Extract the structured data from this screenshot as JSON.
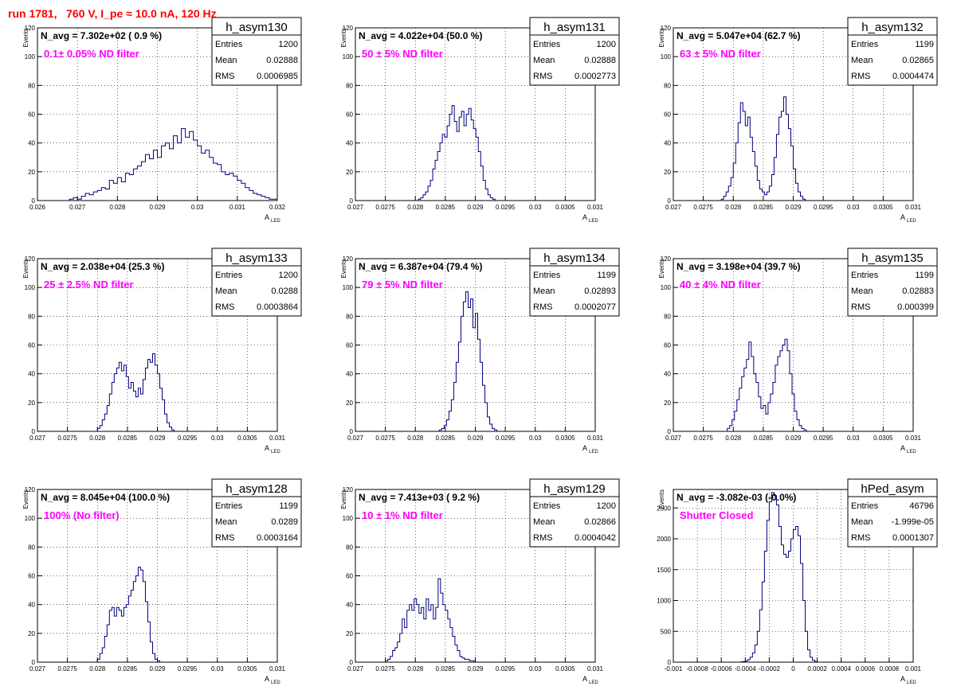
{
  "run_title": "run 1781,   760 V, I_pe ≈ 10.0 nA, 120 Hz",
  "colors": {
    "hist_line": "#000080",
    "filter_text": "#ff00ff",
    "run_title": "#ff0000",
    "axis": "#000000"
  },
  "stats_labels": {
    "entries": "Entries",
    "mean": "Mean",
    "rms": "RMS"
  },
  "ylabel": "Events",
  "xlabel_main": "A",
  "xlabel_sub": "LED",
  "chart_data": [
    {
      "type": "bar",
      "name": "h_asym130",
      "title": "h_asym130",
      "navg": "N_avg = 7.302e+02 ( 0.9 %)",
      "filter": "0.1± 0.05% ND filter",
      "entries": "1200",
      "mean": "0.02888",
      "rms": "0.0006985",
      "xlim": [
        0.026,
        0.032
      ],
      "ylim": [
        0,
        120
      ],
      "xticks": [
        0.026,
        0.027,
        0.028,
        0.029,
        0.03,
        0.031,
        0.032
      ],
      "xtick_labels": [
        "0.026",
        "0.027",
        "0.028",
        "0.029",
        "0.03",
        "0.031",
        "0.032"
      ],
      "yticks": [
        0,
        20,
        40,
        60,
        80,
        100,
        120
      ],
      "ytick_labels": [
        "0",
        "20",
        "40",
        "60",
        "80",
        "100",
        "120"
      ],
      "bin_start": 0.0268,
      "bin_width": 0.0001,
      "values": [
        1,
        2,
        1,
        3,
        5,
        4,
        6,
        7,
        9,
        8,
        14,
        12,
        16,
        13,
        19,
        18,
        22,
        24,
        27,
        32,
        29,
        35,
        30,
        38,
        40,
        36,
        45,
        40,
        50,
        44,
        48,
        42,
        38,
        33,
        35,
        30,
        26,
        25,
        20,
        18,
        19,
        17,
        14,
        12,
        9,
        7,
        5,
        4,
        3,
        2,
        1,
        1
      ]
    },
    {
      "type": "bar",
      "name": "h_asym131",
      "title": "h_asym131",
      "navg": "N_avg = 4.022e+04 (50.0 %)",
      "filter": "50 ± 5% ND filter",
      "entries": "1200",
      "mean": "0.02888",
      "rms": "0.0002773",
      "xlim": [
        0.027,
        0.031
      ],
      "ylim": [
        0,
        120
      ],
      "xticks": [
        0.027,
        0.0275,
        0.028,
        0.0285,
        0.029,
        0.0295,
        0.03,
        0.0305,
        0.031
      ],
      "xtick_labels": [
        "0.027",
        "0.0275",
        "0.028",
        "0.0285",
        "0.029",
        "0.0295",
        "0.03",
        "0.0305",
        "0.031"
      ],
      "yticks": [
        0,
        20,
        40,
        60,
        80,
        100,
        120
      ],
      "ytick_labels": [
        "0",
        "20",
        "40",
        "60",
        "80",
        "100",
        "120"
      ],
      "bin_start": 0.02805,
      "bin_width": 4e-05,
      "values": [
        1,
        2,
        4,
        6,
        10,
        14,
        22,
        28,
        34,
        40,
        46,
        44,
        52,
        60,
        66,
        55,
        48,
        58,
        62,
        52,
        60,
        64,
        56,
        50,
        44,
        34,
        24,
        14,
        8,
        4,
        2,
        1
      ]
    },
    {
      "type": "bar",
      "name": "h_asym132",
      "title": "h_asym132",
      "navg": "N_avg = 5.047e+04 (62.7 %)",
      "filter": "63 ± 5% ND filter",
      "entries": "1199",
      "mean": "0.02865",
      "rms": "0.0004474",
      "xlim": [
        0.027,
        0.031
      ],
      "ylim": [
        0,
        120
      ],
      "xticks": [
        0.027,
        0.0275,
        0.028,
        0.0285,
        0.029,
        0.0295,
        0.03,
        0.0305,
        0.031
      ],
      "xtick_labels": [
        "0.027",
        "0.0275",
        "0.028",
        "0.0285",
        "0.029",
        "0.0295",
        "0.03",
        "0.0305",
        "0.031"
      ],
      "yticks": [
        0,
        20,
        40,
        60,
        80,
        100,
        120
      ],
      "ytick_labels": [
        "0",
        "20",
        "40",
        "60",
        "80",
        "100",
        "120"
      ],
      "bin_start": 0.0278,
      "bin_width": 4e-05,
      "values": [
        1,
        3,
        6,
        10,
        16,
        26,
        40,
        54,
        68,
        62,
        52,
        58,
        44,
        34,
        24,
        14,
        8,
        6,
        4,
        6,
        10,
        18,
        30,
        46,
        58,
        62,
        72,
        60,
        50,
        38,
        22,
        12,
        6,
        3,
        1
      ]
    },
    {
      "type": "bar",
      "name": "h_asym133",
      "title": "h_asym133",
      "navg": "N_avg = 2.038e+04 (25.3 %)",
      "filter": "25 ± 2.5% ND filter",
      "entries": "1200",
      "mean": "0.0288",
      "rms": "0.0003864",
      "xlim": [
        0.027,
        0.031
      ],
      "ylim": [
        0,
        120
      ],
      "xticks": [
        0.027,
        0.0275,
        0.028,
        0.0285,
        0.029,
        0.0295,
        0.03,
        0.0305,
        0.031
      ],
      "xtick_labels": [
        "0.027",
        "0.0275",
        "0.028",
        "0.0285",
        "0.029",
        "0.0295",
        "0.03",
        "0.0305",
        "0.031"
      ],
      "yticks": [
        0,
        20,
        40,
        60,
        80,
        100,
        120
      ],
      "ytick_labels": [
        "0",
        "20",
        "40",
        "60",
        "80",
        "100",
        "120"
      ],
      "bin_start": 0.028,
      "bin_width": 4e-05,
      "values": [
        2,
        4,
        8,
        12,
        18,
        26,
        34,
        40,
        44,
        48,
        42,
        46,
        38,
        30,
        34,
        28,
        24,
        30,
        26,
        36,
        44,
        50,
        48,
        54,
        46,
        40,
        30,
        22,
        12,
        6,
        3,
        1
      ]
    },
    {
      "type": "bar",
      "name": "h_asym134",
      "title": "h_asym134",
      "navg": "N_avg = 6.387e+04 (79.4 %)",
      "filter": "79 ± 5% ND filter",
      "entries": "1199",
      "mean": "0.02893",
      "rms": "0.0002077",
      "xlim": [
        0.027,
        0.031
      ],
      "ylim": [
        0,
        120
      ],
      "xticks": [
        0.027,
        0.0275,
        0.028,
        0.0285,
        0.029,
        0.0295,
        0.03,
        0.0305,
        0.031
      ],
      "xtick_labels": [
        "0.027",
        "0.0275",
        "0.028",
        "0.0285",
        "0.029",
        "0.0295",
        "0.03",
        "0.0305",
        "0.031"
      ],
      "yticks": [
        0,
        20,
        40,
        60,
        80,
        100,
        120
      ],
      "ytick_labels": [
        "0",
        "20",
        "40",
        "60",
        "80",
        "100",
        "120"
      ],
      "bin_start": 0.0284,
      "bin_width": 4e-05,
      "values": [
        1,
        2,
        4,
        8,
        14,
        22,
        34,
        48,
        62,
        80,
        90,
        97,
        86,
        92,
        72,
        82,
        64,
        48,
        32,
        20,
        10,
        5,
        2,
        1
      ]
    },
    {
      "type": "bar",
      "name": "h_asym135",
      "title": "h_asym135",
      "navg": "N_avg = 3.198e+04 (39.7 %)",
      "filter": "40 ± 4% ND filter",
      "entries": "1199",
      "mean": "0.02883",
      "rms": "0.000399",
      "xlim": [
        0.027,
        0.031
      ],
      "ylim": [
        0,
        120
      ],
      "xticks": [
        0.027,
        0.0275,
        0.028,
        0.0285,
        0.029,
        0.0295,
        0.03,
        0.0305,
        0.031
      ],
      "xtick_labels": [
        "0.027",
        "0.0275",
        "0.028",
        "0.0285",
        "0.029",
        "0.0295",
        "0.03",
        "0.0305",
        "0.031"
      ],
      "yticks": [
        0,
        20,
        40,
        60,
        80,
        100,
        120
      ],
      "ytick_labels": [
        "0",
        "20",
        "40",
        "60",
        "80",
        "100",
        "120"
      ],
      "bin_start": 0.0279,
      "bin_width": 4e-05,
      "values": [
        2,
        4,
        8,
        14,
        22,
        30,
        38,
        44,
        50,
        62,
        52,
        40,
        34,
        24,
        16,
        18,
        12,
        20,
        26,
        34,
        46,
        52,
        56,
        60,
        64,
        56,
        40,
        26,
        14,
        8,
        4,
        2,
        1
      ]
    },
    {
      "type": "bar",
      "name": "h_asym128",
      "title": "h_asym128",
      "navg": "N_avg = 8.045e+04 (100.0 %)",
      "filter": "100% (No filter)",
      "entries": "1199",
      "mean": "0.0289",
      "rms": "0.0003164",
      "xlim": [
        0.027,
        0.031
      ],
      "ylim": [
        0,
        120
      ],
      "xticks": [
        0.027,
        0.0275,
        0.028,
        0.0285,
        0.029,
        0.0295,
        0.03,
        0.0305,
        0.031
      ],
      "xtick_labels": [
        "0.027",
        "0.0275",
        "0.028",
        "0.0285",
        "0.029",
        "0.0295",
        "0.03",
        "0.0305",
        "0.031"
      ],
      "yticks": [
        0,
        20,
        40,
        60,
        80,
        100,
        120
      ],
      "ytick_labels": [
        "0",
        "20",
        "40",
        "60",
        "80",
        "100",
        "120"
      ],
      "bin_start": 0.028,
      "bin_width": 4e-05,
      "values": [
        2,
        6,
        10,
        18,
        26,
        36,
        38,
        32,
        38,
        36,
        32,
        38,
        40,
        46,
        50,
        56,
        60,
        66,
        64,
        56,
        42,
        28,
        14,
        6,
        2,
        1
      ]
    },
    {
      "type": "bar",
      "name": "h_asym129",
      "title": "h_asym129",
      "navg": "N_avg = 7.413e+03 ( 9.2 %)",
      "filter": "10 ± 1% ND filter",
      "entries": "1200",
      "mean": "0.02866",
      "rms": "0.0004042",
      "xlim": [
        0.027,
        0.031
      ],
      "ylim": [
        0,
        120
      ],
      "xticks": [
        0.027,
        0.0275,
        0.028,
        0.0285,
        0.029,
        0.0295,
        0.03,
        0.0305,
        0.031
      ],
      "xtick_labels": [
        "0.027",
        "0.0275",
        "0.028",
        "0.0285",
        "0.029",
        "0.0295",
        "0.03",
        "0.0305",
        "0.031"
      ],
      "yticks": [
        0,
        20,
        40,
        60,
        80,
        100,
        120
      ],
      "ytick_labels": [
        "0",
        "20",
        "40",
        "60",
        "80",
        "100",
        "120"
      ],
      "bin_start": 0.0275,
      "bin_width": 4e-05,
      "values": [
        1,
        2,
        4,
        8,
        10,
        14,
        20,
        30,
        24,
        36,
        40,
        36,
        44,
        40,
        34,
        38,
        30,
        44,
        36,
        40,
        30,
        38,
        58,
        48,
        40,
        36,
        30,
        24,
        18,
        12,
        8,
        4,
        3,
        2,
        2,
        1,
        1
      ]
    },
    {
      "type": "bar",
      "name": "hPed_asym",
      "title": "hPed_asym",
      "navg": "N_avg = -3.082e-03 (-0.0%)",
      "filter": "Shutter Closed",
      "entries": "46796",
      "mean": "-1.999e-05",
      "rms": "0.0001307",
      "xlim": [
        -0.001,
        0.001
      ],
      "ylim": [
        0,
        2800
      ],
      "xticks": [
        -0.001,
        -0.0008,
        -0.0006,
        -0.0004,
        -0.0002,
        0,
        0.0002,
        0.0004,
        0.0006,
        0.0008,
        0.001
      ],
      "xtick_labels": [
        "-0.001",
        "-0.0008",
        "-0.0006",
        "-0.0004",
        "-0.0002",
        "0",
        "0.0002",
        "0.0004",
        "0.0006",
        "0.0008",
        "0.001"
      ],
      "yticks": [
        0,
        500,
        1000,
        1500,
        2000,
        2500
      ],
      "ytick_labels": [
        "0",
        "500",
        "1000",
        "1500",
        "2000",
        "2500"
      ],
      "bin_start": -0.00044,
      "bin_width": 2e-05,
      "values": [
        5,
        10,
        20,
        40,
        80,
        150,
        280,
        500,
        850,
        1300,
        1800,
        2300,
        2600,
        2750,
        2700,
        2550,
        2200,
        1900,
        1750,
        1700,
        1800,
        2000,
        2150,
        2200,
        2050,
        1600,
        1000,
        500,
        200,
        80,
        30,
        10
      ]
    }
  ]
}
